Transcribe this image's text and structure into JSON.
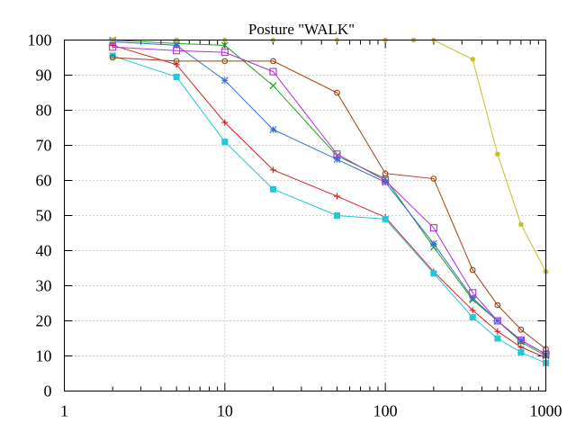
{
  "chart_data": {
    "type": "line",
    "title": "Posture \"WALK\"",
    "xlabel": "",
    "ylabel": "",
    "xscale": "log",
    "xlim": [
      1,
      1000
    ],
    "ylim": [
      0,
      100
    ],
    "x_ticks": [
      1,
      10,
      100,
      1000
    ],
    "x_tick_labels": [
      "1",
      "10",
      "100",
      "1000"
    ],
    "y_ticks": [
      0,
      10,
      20,
      30,
      40,
      50,
      60,
      70,
      80,
      90,
      100
    ],
    "y_tick_labels": [
      "0",
      "10",
      "20",
      "30",
      "40",
      "50",
      "60",
      "70",
      "80",
      "90",
      "100"
    ],
    "grid": true,
    "series": [
      {
        "name": "series-red-plus",
        "color": "#d62020",
        "marker": "plus",
        "x": [
          2,
          5,
          10,
          20,
          50,
          100,
          200,
          350,
          500,
          700,
          1000
        ],
        "y": [
          98.5,
          93,
          76.5,
          63,
          55.5,
          49.5,
          34,
          23,
          17,
          12.5,
          9.5
        ]
      },
      {
        "name": "series-green-cross",
        "color": "#20a020",
        "marker": "cross",
        "x": [
          2,
          5,
          10,
          20,
          50,
          100,
          200,
          350,
          500,
          700,
          1000
        ],
        "y": [
          100,
          99,
          98.5,
          87,
          67,
          60.5,
          41,
          26,
          20,
          14,
          10
        ]
      },
      {
        "name": "series-blue-star",
        "color": "#3070d0",
        "marker": "star",
        "x": [
          2,
          5,
          10,
          20,
          50,
          100,
          200,
          350,
          500,
          700,
          1000
        ],
        "y": [
          99.5,
          98.5,
          88.5,
          74.5,
          66,
          59.5,
          42,
          26.5,
          20,
          14.5,
          10.5
        ]
      },
      {
        "name": "series-magenta-open-square",
        "color": "#b030d0",
        "marker": "open-square",
        "x": [
          2,
          5,
          10,
          20,
          50,
          100,
          200,
          350,
          500,
          700,
          1000
        ],
        "y": [
          98,
          97,
          96.5,
          91,
          67.5,
          60,
          46.5,
          28,
          20,
          14.5,
          10.5
        ]
      },
      {
        "name": "series-cyan-filled-square",
        "color": "#20c8d8",
        "marker": "filled-square",
        "x": [
          2,
          5,
          10,
          20,
          50,
          100,
          200,
          350,
          500,
          700,
          1000
        ],
        "y": [
          95.5,
          89.5,
          71,
          57.5,
          50,
          49,
          33.5,
          21,
          15,
          11,
          8
        ]
      },
      {
        "name": "series-olive-filled-circle",
        "color": "#c8c020",
        "marker": "filled-circle",
        "x": [
          2,
          5,
          10,
          20,
          50,
          100,
          150,
          200,
          350,
          500,
          700,
          1000
        ],
        "y": [
          100,
          100,
          100,
          100,
          100,
          100,
          100,
          100,
          94.5,
          67.5,
          47.5,
          34
        ]
      },
      {
        "name": "series-brown-open-circle",
        "color": "#a04010",
        "marker": "open-circle",
        "x": [
          2,
          5,
          10,
          20,
          50,
          100,
          200,
          350,
          500,
          700,
          1000
        ],
        "y": [
          95,
          94,
          94,
          94,
          85,
          62,
          60.5,
          34.5,
          24.5,
          17.5,
          12
        ]
      }
    ]
  }
}
